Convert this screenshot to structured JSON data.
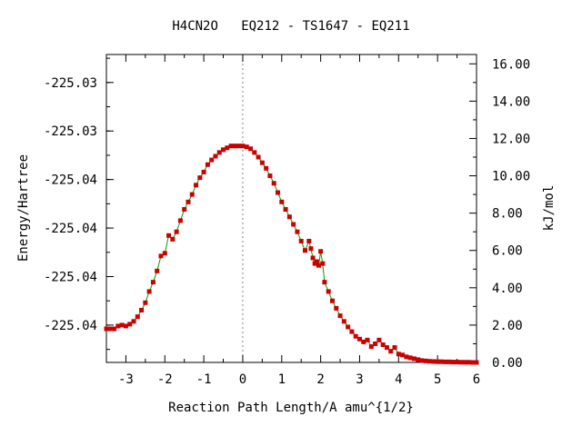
{
  "chart_data": {
    "type": "line",
    "title": "H4CN2O   EQ212 - TS1647 - EQ211",
    "xlabel": "Reaction Path Length/A amu^{1/2}",
    "ylabel": "Energy/Hartree",
    "y2label": "kJ/mol",
    "xlim": [
      -3.5,
      6.0
    ],
    "y2lim": [
      0.0,
      16.5
    ],
    "grid": false,
    "ts_marker_x": 0,
    "x_ticks": [
      "-3",
      "-2",
      "-1",
      "0",
      "1",
      "2",
      "3",
      "4",
      "5",
      "6"
    ],
    "y_left_ticks": [
      "-225.03",
      "-225.03",
      "-225.04",
      "-225.04",
      "-225.04",
      "-225.04"
    ],
    "y_left_tick_kj": [
      15.0,
      12.4,
      9.8,
      7.2,
      4.6,
      2.0
    ],
    "y_right_ticks": [
      "0.00",
      "2.00",
      "4.00",
      "6.00",
      "8.00",
      "10.00",
      "12.00",
      "14.00",
      "16.00"
    ],
    "line_color": "#00a000",
    "marker_color": "#cc0000",
    "series": [
      {
        "x": [
          -3.5,
          -3.4,
          -3.3,
          -3.2,
          -3.1,
          -3.0,
          -2.9,
          -2.8,
          -2.7,
          -2.6,
          -2.5,
          -2.4,
          -2.3,
          -2.2,
          -2.1,
          -2.0,
          -1.9,
          -1.8,
          -1.7,
          -1.6,
          -1.5,
          -1.4,
          -1.3,
          -1.2,
          -1.1,
          -1.0,
          -0.9,
          -0.8,
          -0.7,
          -0.6,
          -0.5,
          -0.4,
          -0.3,
          -0.2,
          -0.1,
          0.0,
          0.1,
          0.2,
          0.3,
          0.4,
          0.5,
          0.6,
          0.7,
          0.8,
          0.9,
          1.0,
          1.1,
          1.2,
          1.3,
          1.4,
          1.5,
          1.6,
          1.7,
          1.75,
          1.8,
          1.85,
          1.9,
          1.95,
          2.0,
          2.05,
          2.1,
          2.2,
          2.3,
          2.4,
          2.5,
          2.6,
          2.7,
          2.8,
          2.9,
          3.0,
          3.1,
          3.2,
          3.3,
          3.4,
          3.5,
          3.6,
          3.7,
          3.8,
          3.9,
          4.0,
          4.1,
          4.2,
          4.3,
          4.4,
          4.5,
          4.6,
          4.7,
          4.8,
          4.9,
          5.0,
          5.1,
          5.2,
          5.3,
          5.4,
          5.5,
          5.6,
          5.7,
          5.8,
          5.9,
          6.0
        ],
        "y": [
          1.8,
          1.8,
          1.8,
          1.95,
          2.0,
          1.95,
          2.05,
          2.2,
          2.45,
          2.8,
          3.2,
          3.8,
          4.3,
          4.9,
          5.7,
          5.85,
          6.8,
          6.6,
          7.0,
          7.6,
          8.2,
          8.6,
          9.0,
          9.5,
          9.9,
          10.2,
          10.6,
          10.85,
          11.05,
          11.25,
          11.4,
          11.5,
          11.6,
          11.6,
          11.6,
          11.6,
          11.55,
          11.45,
          11.25,
          11.0,
          10.7,
          10.4,
          10.0,
          9.6,
          9.1,
          8.6,
          8.2,
          7.8,
          7.4,
          7.0,
          6.5,
          6.0,
          6.5,
          6.1,
          5.6,
          5.3,
          5.4,
          5.2,
          5.95,
          5.3,
          4.3,
          3.8,
          3.3,
          2.9,
          2.5,
          2.2,
          1.9,
          1.65,
          1.4,
          1.25,
          1.1,
          1.2,
          0.85,
          1.0,
          1.2,
          0.95,
          0.8,
          0.6,
          0.8,
          0.45,
          0.4,
          0.3,
          0.25,
          0.2,
          0.15,
          0.1,
          0.08,
          0.06,
          0.05,
          0.04,
          0.04,
          0.03,
          0.03,
          0.02,
          0.02,
          0.01,
          0.01,
          0.01,
          0.0,
          0.0
        ]
      }
    ]
  }
}
